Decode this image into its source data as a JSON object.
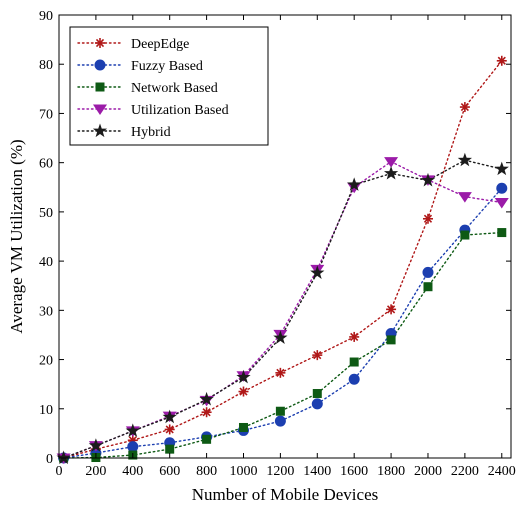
{
  "chart_data": {
    "type": "line",
    "title": "",
    "xlabel": "Number of Mobile Devices",
    "ylabel": "Average VM Utilization (%)",
    "xlim": [
      0,
      2450
    ],
    "ylim": [
      0,
      90
    ],
    "xticks": [
      0,
      200,
      400,
      600,
      800,
      1000,
      1200,
      1400,
      1600,
      1800,
      2000,
      2200,
      2400
    ],
    "yticks": [
      0,
      10,
      20,
      30,
      40,
      50,
      60,
      70,
      80,
      90
    ],
    "grid": false,
    "legend_position": "top-left",
    "x": [
      25,
      200,
      400,
      600,
      800,
      1000,
      1200,
      1400,
      1600,
      1800,
      2000,
      2200,
      2400
    ],
    "series": [
      {
        "name": "DeepEdge",
        "color": "#b01818",
        "marker": "asterisk",
        "values": [
          0,
          1.8,
          3.6,
          5.8,
          9.3,
          13.5,
          17.3,
          20.9,
          24.6,
          30.2,
          48.6,
          71.3,
          80.7
        ]
      },
      {
        "name": "Fuzzy Based",
        "color": "#1c3fb0",
        "marker": "circle",
        "values": [
          0,
          1.0,
          2.3,
          3.1,
          4.3,
          5.6,
          7.5,
          11.0,
          16.0,
          25.3,
          37.7,
          46.3,
          54.8
        ]
      },
      {
        "name": "Network Based",
        "color": "#0e5a14",
        "marker": "square",
        "values": [
          0,
          0.1,
          0.6,
          1.8,
          3.8,
          6.2,
          9.5,
          13.1,
          19.5,
          24.0,
          34.8,
          45.3,
          45.8
        ]
      },
      {
        "name": "Utilization Based",
        "color": "#9b1ba8",
        "marker": "triangle-down",
        "values": [
          0,
          2.5,
          5.5,
          8.5,
          11.7,
          16.7,
          25.1,
          38.3,
          55.0,
          60.2,
          56.5,
          53.1,
          51.9
        ]
      },
      {
        "name": "Hybrid",
        "color": "#1c1c1c",
        "marker": "star",
        "values": [
          0,
          2.5,
          5.5,
          8.3,
          11.9,
          16.4,
          24.4,
          37.6,
          55.5,
          57.8,
          56.4,
          60.5,
          58.7
        ]
      }
    ]
  }
}
